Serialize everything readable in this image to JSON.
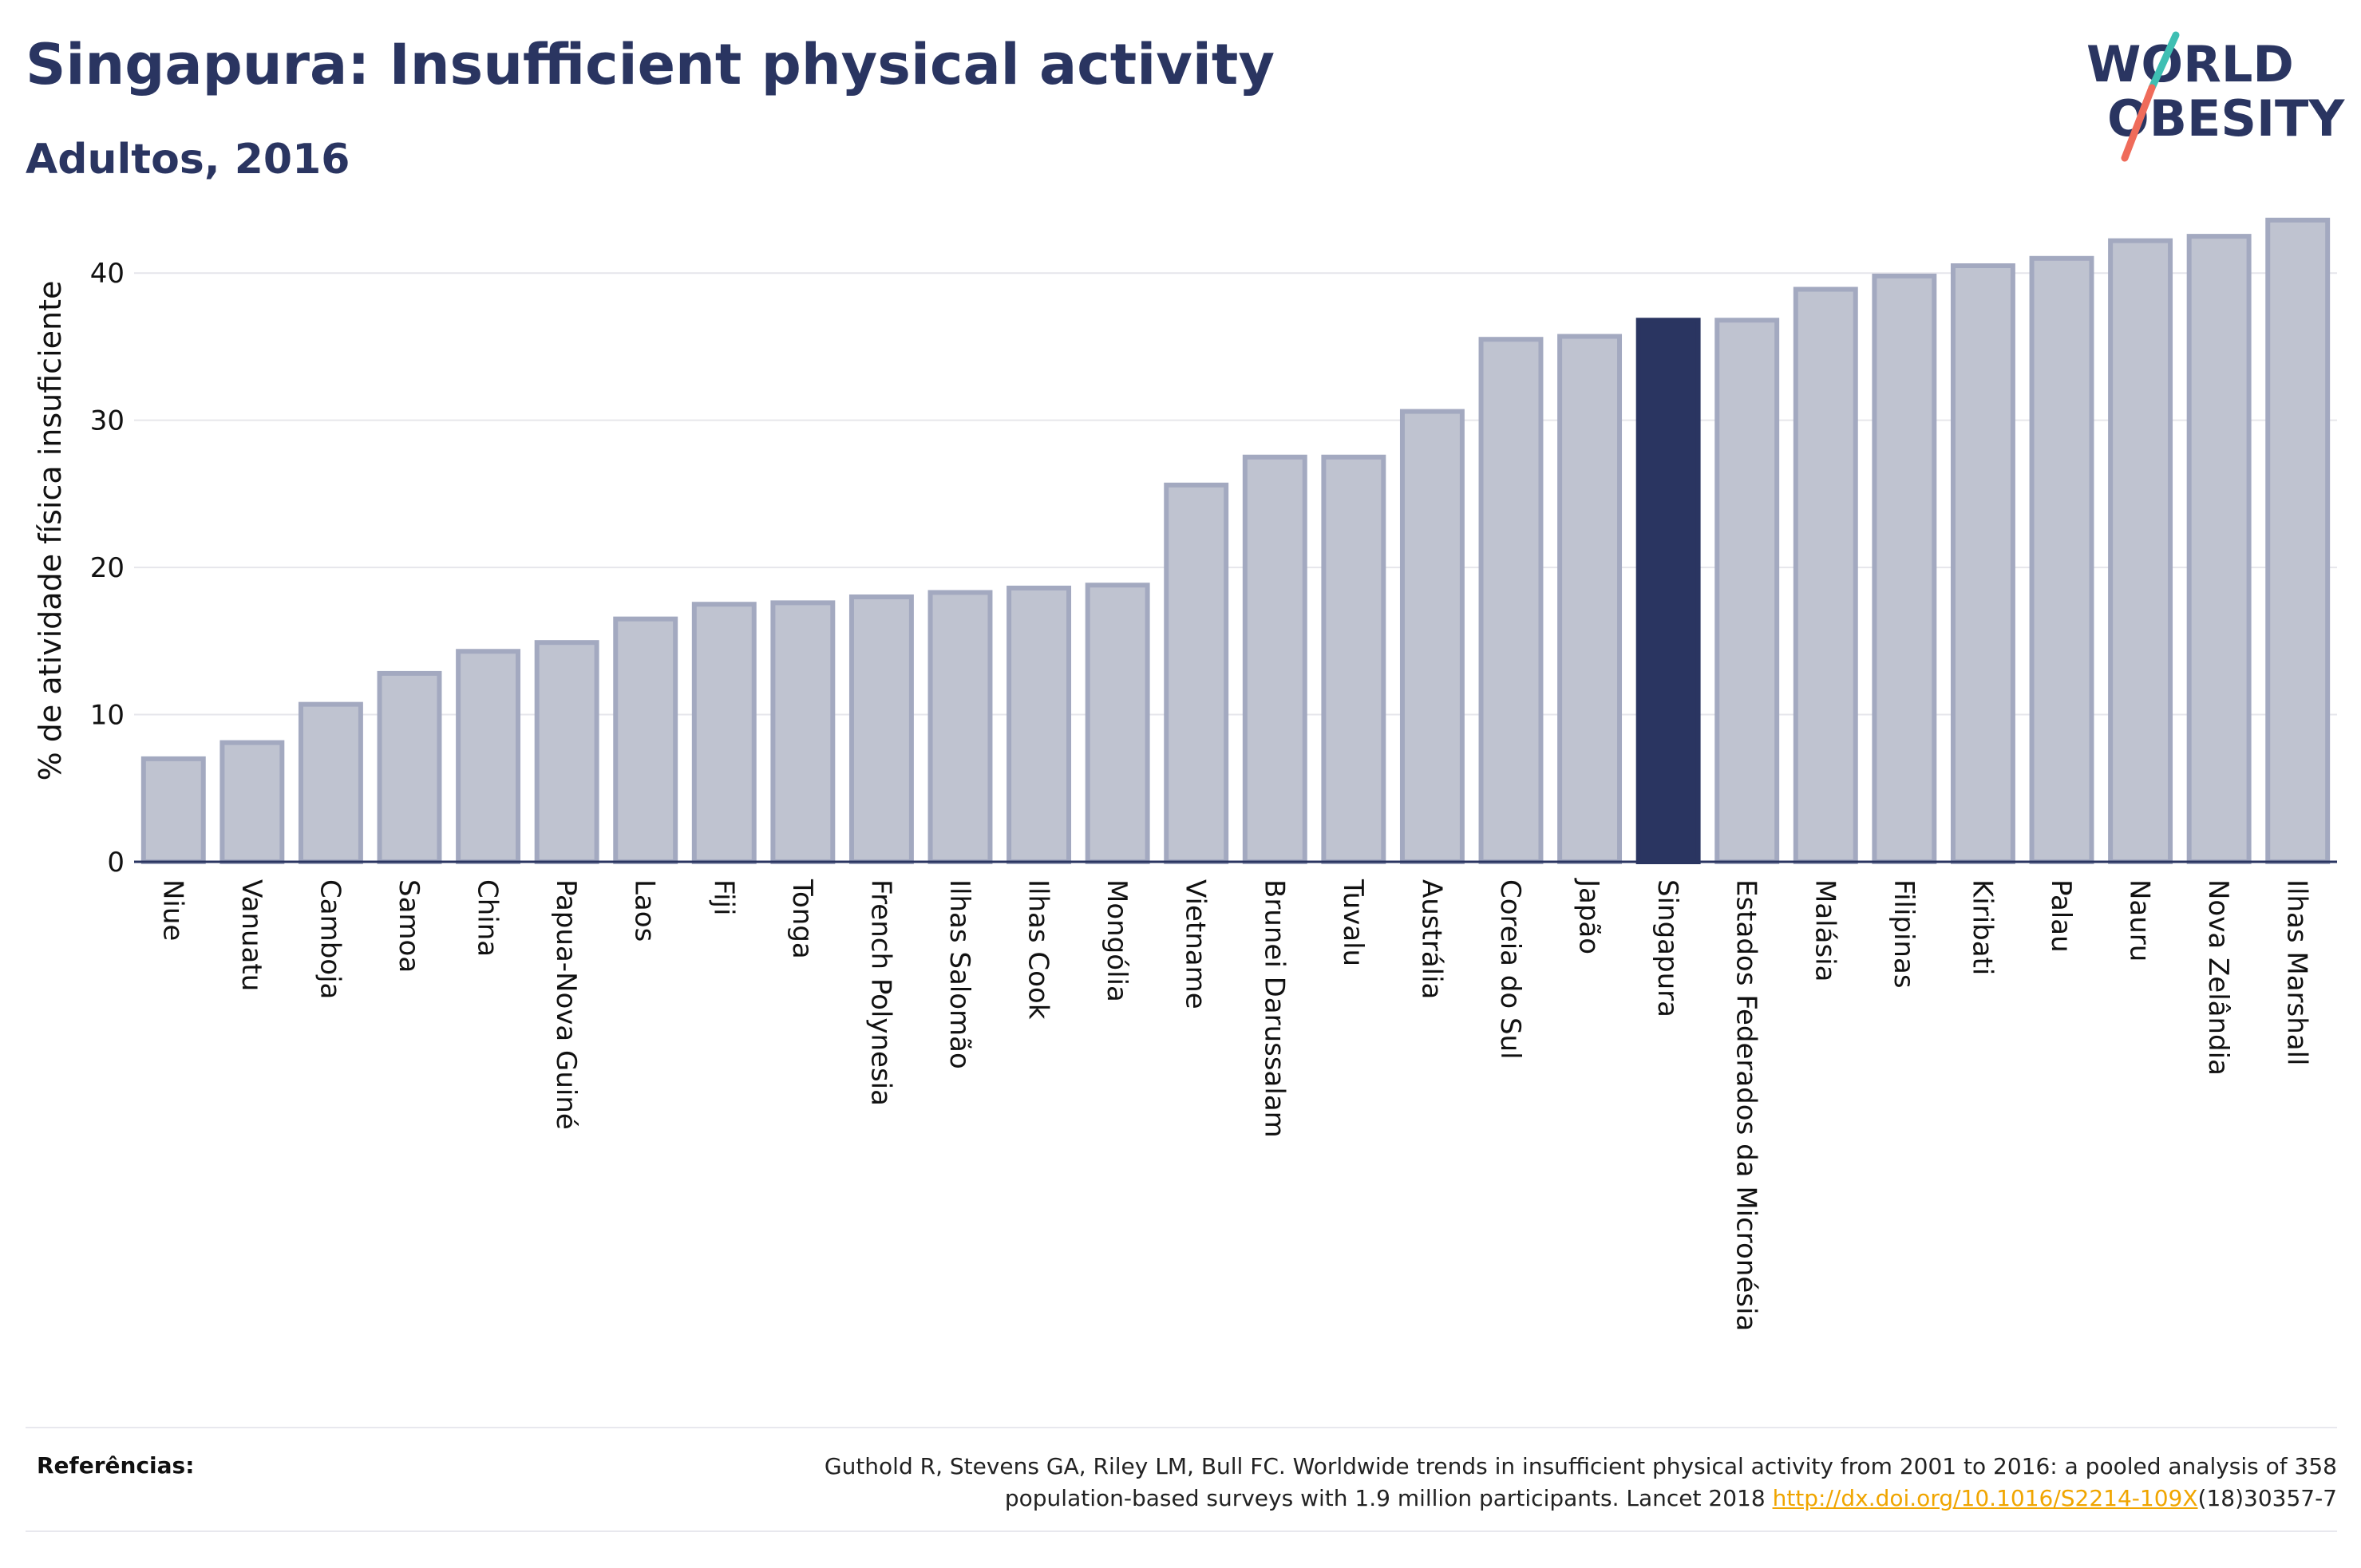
{
  "header": {
    "title": "Singapura: Insufficient physical activity",
    "subtitle": "Adultos, 2016"
  },
  "logo": {
    "line1": "WORLD",
    "line2": "OBESITY"
  },
  "colors": {
    "bar_fill": "#bfc3d0",
    "bar_stroke": "#a3a9c0",
    "highlight": "#2a3561",
    "axis_text": "#111111",
    "gridline": "#e6e6eb",
    "link": "#f0a500"
  },
  "chart_data": {
    "type": "bar",
    "title": "Singapura: Insufficient physical activity",
    "subtitle": "Adultos, 2016",
    "ylabel": "% de atividade física insuficiente",
    "xlabel": "",
    "ylim": [
      0,
      45
    ],
    "yticks": [
      0,
      10,
      20,
      30,
      40
    ],
    "grid": true,
    "highlight": "Singapura",
    "categories": [
      "Niue",
      "Vanuatu",
      "Camboja",
      "Samoa",
      "China",
      "Papua-Nova Guiné",
      "Laos",
      "Fiji",
      "Tonga",
      "French Polynesia",
      "Ilhas Salomão",
      "Ilhas Cook",
      "Mongólia",
      "Vietname",
      "Brunei Darussalam",
      "Tuvalu",
      "Austrália",
      "Coreia do Sul",
      "Japão",
      "Singapura",
      "Estados Federados da Micronésia",
      "Malásia",
      "Filipinas",
      "Kiribati",
      "Palau",
      "Nauru",
      "Nova Zelândia",
      "Ilhas Marshall"
    ],
    "values": [
      7.0,
      8.1,
      10.7,
      12.8,
      14.3,
      14.9,
      16.5,
      17.5,
      17.6,
      18.0,
      18.3,
      18.6,
      18.8,
      25.6,
      27.5,
      27.5,
      30.6,
      35.5,
      35.7,
      36.8,
      36.8,
      38.9,
      39.8,
      40.5,
      41.0,
      42.2,
      42.5,
      43.6
    ]
  },
  "references": {
    "label": "Referências:",
    "text1": "Guthold R, Stevens GA, Riley LM, Bull FC. Worldwide trends in insufficient physical activity from 2001 to 2016: a pooled analysis of 358",
    "text2": "population-based surveys with 1.9 million participants. Lancet 2018 ",
    "link": "http://dx.doi.org/10.1016/S2214-109X",
    "text3": "(18)30357-7"
  }
}
